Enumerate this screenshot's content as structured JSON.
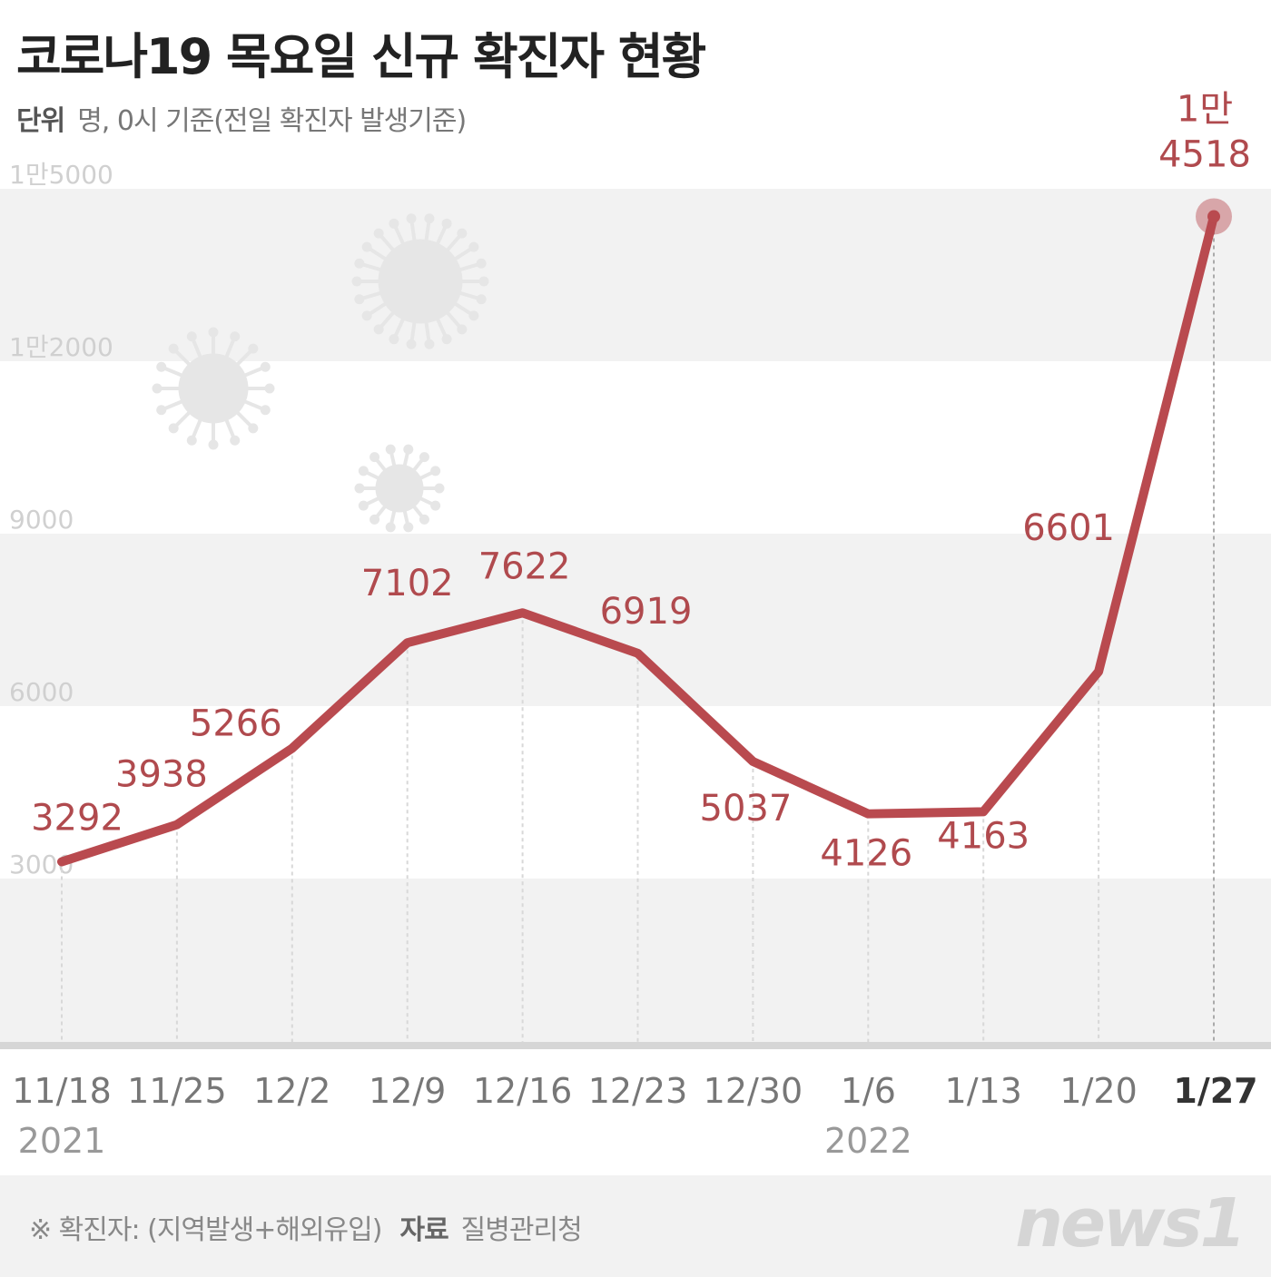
{
  "title": "코로나19 목요일 신규 확진자 현황",
  "subtitle": {
    "unit_label": "단위",
    "unit_text": "명, 0시 기준(전일 확진자 발생기준)"
  },
  "footer": {
    "note": "※ 확진자: (지역발생+해외유입)",
    "source_label": "자료",
    "source": "질병관리청",
    "logo": "news1"
  },
  "colors": {
    "line": "#b94a4f",
    "label": "#b04a4e",
    "axis": "#c8c8c8",
    "band": "#f2f2f2"
  },
  "chart_data": {
    "type": "line",
    "title": "코로나19 목요일 신규 확진자 현황",
    "xlabel": "",
    "ylabel": "명",
    "categories": [
      "11/18",
      "11/25",
      "12/2",
      "12/9",
      "12/16",
      "12/23",
      "12/30",
      "1/6",
      "1/13",
      "1/20",
      "1/27"
    ],
    "year_labels": [
      {
        "index": 0,
        "text": "2021"
      },
      {
        "index": 7,
        "text": "2022"
      }
    ],
    "values": [
      3292,
      3938,
      5266,
      7102,
      7622,
      6919,
      5037,
      4126,
      4163,
      6601,
      14518
    ],
    "data_labels": [
      "3292",
      "3938",
      "5266",
      "7102",
      "7622",
      "6919",
      "5037",
      "4126",
      "4163",
      "6601",
      "1만\n4518"
    ],
    "yticks": [
      3000,
      6000,
      9000,
      12000,
      15000
    ],
    "ytick_labels": [
      "3000",
      "6000",
      "9000",
      "1만2000",
      "1만5000"
    ],
    "ylim": [
      0,
      15000
    ],
    "grid": true
  }
}
